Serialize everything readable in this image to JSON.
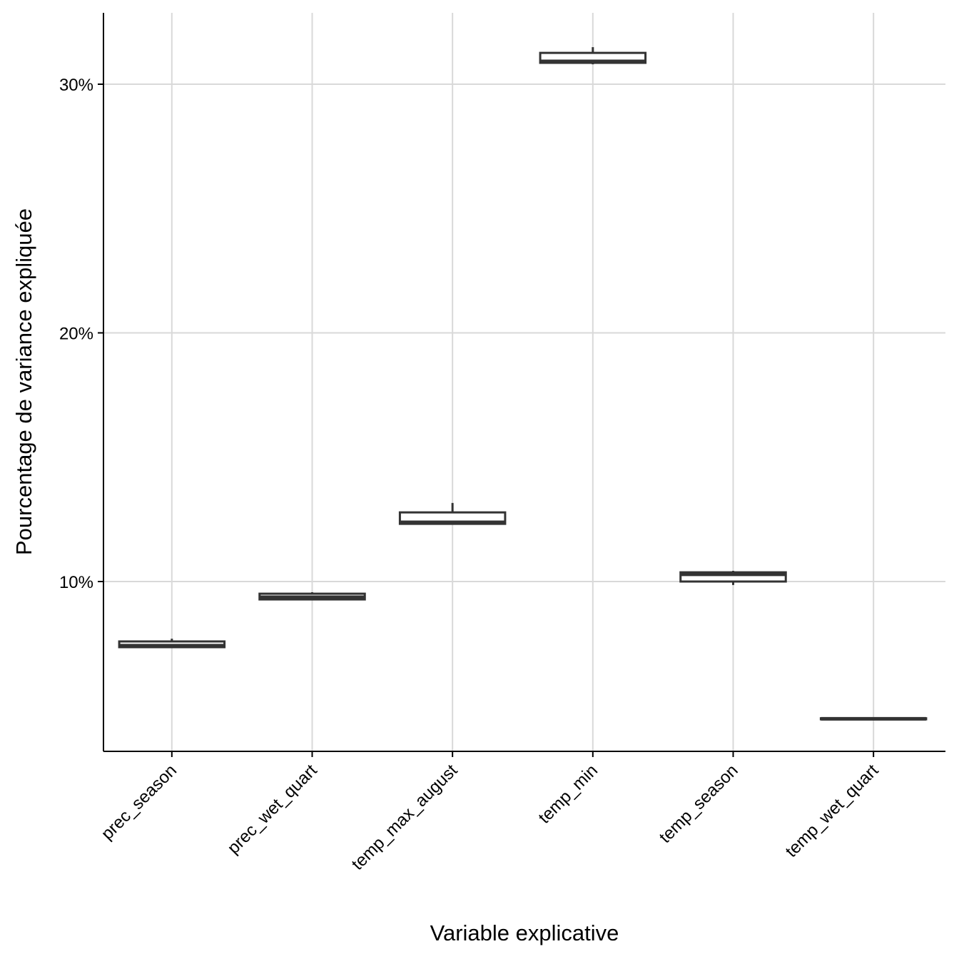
{
  "chart_data": {
    "type": "boxplot",
    "xlabel": "Variable explicative",
    "ylabel": "Pourcentage de variance expliquée",
    "ylim": [
      3.17,
      32.87
    ],
    "yticks": [
      10,
      20,
      30
    ],
    "ytick_labels": [
      "10%",
      "20%",
      "30%"
    ],
    "grid": true,
    "categories": [
      "prec_season",
      "prec_wet_quart",
      "temp_max_august",
      "temp_min",
      "temp_season",
      "temp_wet_quart"
    ],
    "boxes": [
      {
        "min": 7.36,
        "q1": 7.36,
        "median": 7.42,
        "q3": 7.59,
        "max": 7.7
      },
      {
        "min": 9.28,
        "q1": 9.28,
        "median": 9.37,
        "q3": 9.51,
        "max": 9.57
      },
      {
        "min": 12.32,
        "q1": 12.32,
        "median": 12.38,
        "q3": 12.78,
        "max": 13.16
      },
      {
        "min": 30.8,
        "q1": 30.86,
        "median": 30.92,
        "q3": 31.26,
        "max": 31.49
      },
      {
        "min": 9.86,
        "q1": 10.0,
        "median": 10.29,
        "q3": 10.37,
        "max": 10.43
      },
      {
        "min": 4.46,
        "q1": 4.46,
        "median": 4.48,
        "q3": 4.5,
        "max": 4.5
      }
    ],
    "colors": {
      "box": "#333333",
      "grid": "#d9d9d9",
      "fill": "#ffffff"
    }
  }
}
